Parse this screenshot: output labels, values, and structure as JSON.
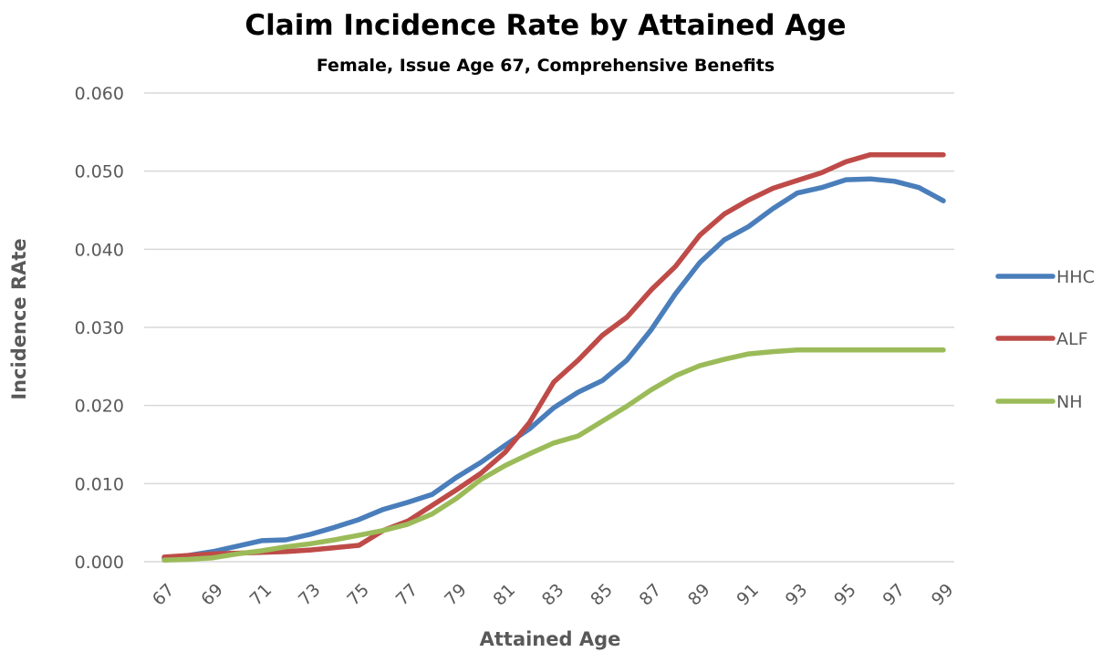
{
  "chart_data": {
    "type": "line",
    "title": "Claim Incidence Rate by Attained Age",
    "subtitle": "Female, Issue Age 67, Comprehensive Benefits",
    "xlabel": "Attained Age",
    "ylabel": "Incidence RAte",
    "x": [
      67,
      68,
      69,
      70,
      71,
      72,
      73,
      74,
      75,
      76,
      77,
      78,
      79,
      80,
      81,
      82,
      83,
      84,
      85,
      86,
      87,
      88,
      89,
      90,
      91,
      92,
      93,
      94,
      95,
      96,
      97,
      98,
      99
    ],
    "x_tick_labels": [
      "67",
      "69",
      "71",
      "73",
      "75",
      "77",
      "79",
      "81",
      "83",
      "85",
      "87",
      "89",
      "91",
      "93",
      "95",
      "97",
      "99"
    ],
    "ylim": [
      0,
      0.06
    ],
    "y_ticks": [
      0,
      0.01,
      0.02,
      0.03,
      0.04,
      0.05,
      0.06
    ],
    "y_tick_labels": [
      "0.000",
      "0.010",
      "0.020",
      "0.030",
      "0.040",
      "0.050",
      "0.060"
    ],
    "grid": true,
    "legend_position": "right",
    "series": [
      {
        "name": "HHC",
        "color": "#4a7ebb",
        "values": [
          0.0004,
          0.0008,
          0.0013,
          0.002,
          0.0027,
          0.0028,
          0.0035,
          0.0044,
          0.0054,
          0.0067,
          0.0076,
          0.0086,
          0.0108,
          0.0127,
          0.0149,
          0.017,
          0.0197,
          0.0217,
          0.0232,
          0.0258,
          0.0297,
          0.0343,
          0.0383,
          0.0412,
          0.0429,
          0.0452,
          0.0472,
          0.0479,
          0.0489,
          0.049,
          0.0487,
          0.0479,
          0.0462
        ]
      },
      {
        "name": "ALF",
        "color": "#be4b48",
        "values": [
          0.0006,
          0.0008,
          0.001,
          0.0011,
          0.0012,
          0.0013,
          0.0015,
          0.0018,
          0.0021,
          0.004,
          0.0052,
          0.0072,
          0.0092,
          0.0113,
          0.014,
          0.0178,
          0.023,
          0.0258,
          0.029,
          0.0313,
          0.0348,
          0.0378,
          0.0418,
          0.0445,
          0.0463,
          0.0478,
          0.0488,
          0.0498,
          0.0512,
          0.0521,
          0.0521,
          0.0521,
          0.0521
        ]
      },
      {
        "name": "NH",
        "color": "#9bbb59",
        "values": [
          0.0002,
          0.0003,
          0.0005,
          0.001,
          0.0014,
          0.0019,
          0.0023,
          0.0028,
          0.0034,
          0.004,
          0.0048,
          0.0061,
          0.0081,
          0.0105,
          0.0123,
          0.0138,
          0.0152,
          0.0161,
          0.018,
          0.0199,
          0.022,
          0.0238,
          0.0251,
          0.0259,
          0.0266,
          0.0269,
          0.0271,
          0.0271,
          0.0271,
          0.0271,
          0.0271,
          0.0271,
          0.0271
        ]
      }
    ]
  }
}
